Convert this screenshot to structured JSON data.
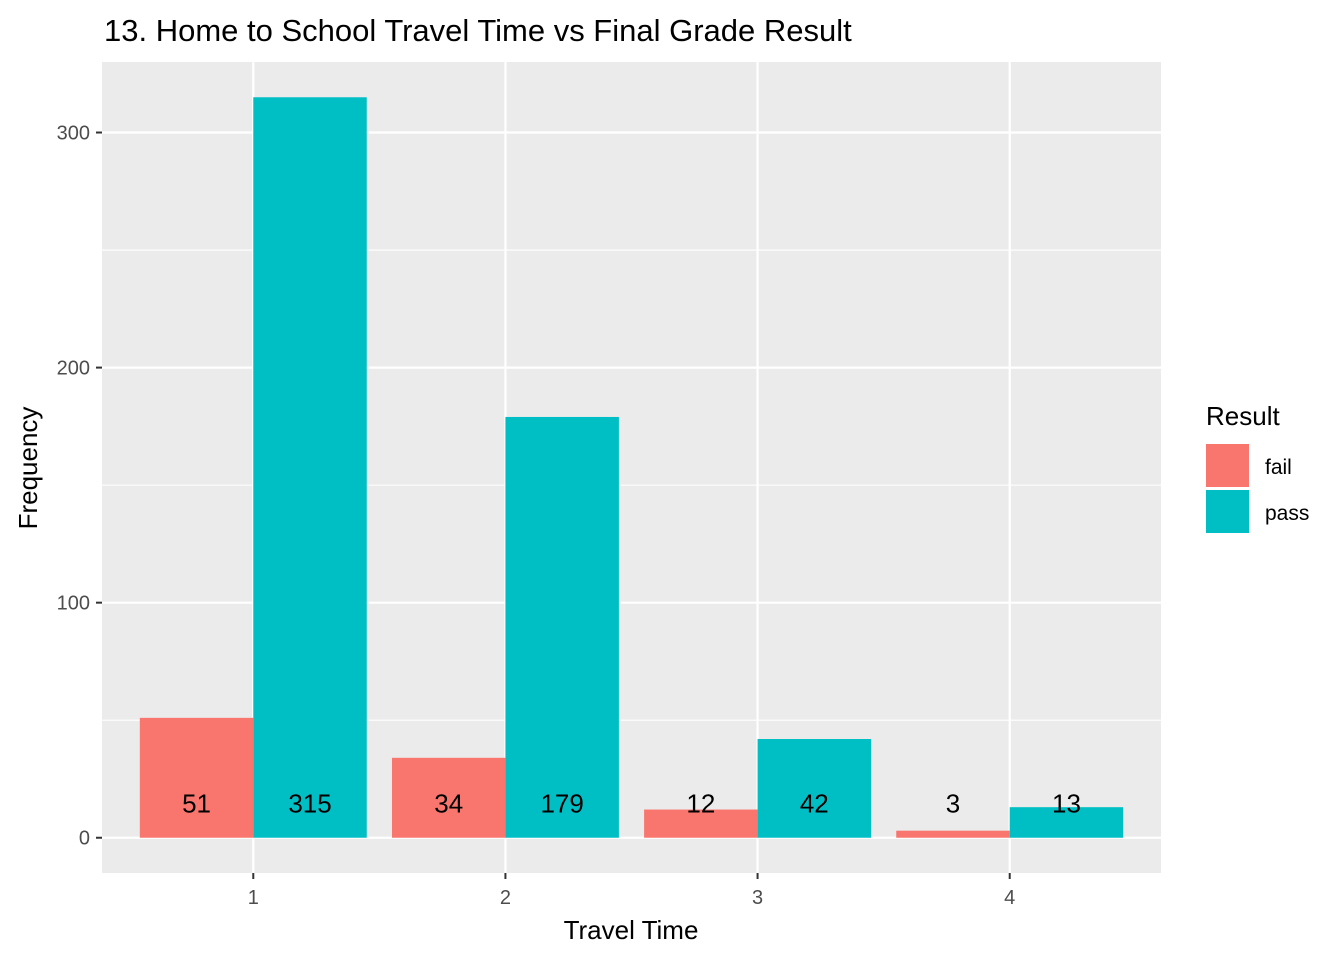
{
  "chart_data": {
    "type": "bar",
    "title": "13. Home to School Travel Time vs Final Grade Result",
    "xlabel": "Travel Time",
    "ylabel": "Frequency",
    "categories": [
      "1",
      "2",
      "3",
      "4"
    ],
    "series": [
      {
        "name": "fail",
        "color": "#F8766D",
        "values": [
          51,
          34,
          12,
          3
        ]
      },
      {
        "name": "pass",
        "color": "#00BFC4",
        "values": [
          315,
          179,
          42,
          13
        ]
      }
    ],
    "ylim": [
      -15,
      330
    ],
    "yticks": [
      0,
      100,
      200,
      300
    ],
    "grid": true,
    "legend": {
      "title": "Result",
      "position": "right"
    }
  }
}
